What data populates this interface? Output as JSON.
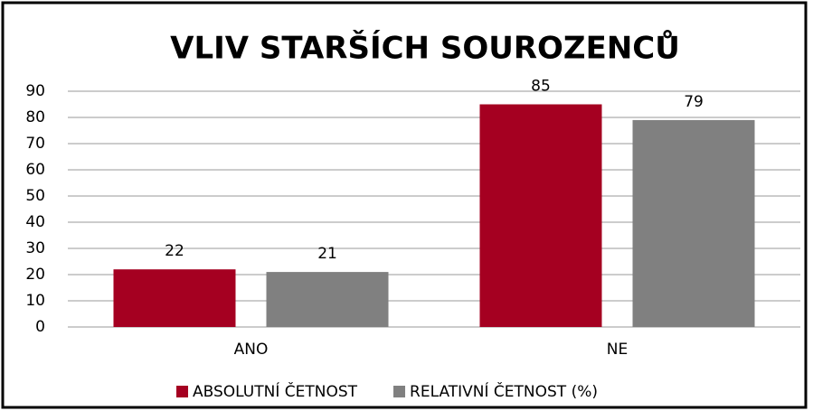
{
  "chart_data": {
    "type": "bar",
    "title": "VLIV STARŠÍCH SOUROZENCŮ",
    "categories": [
      "ANO",
      "NE"
    ],
    "series": [
      {
        "name": "ABSOLUTNÍ ČETNOST",
        "color": "#a50021",
        "values": [
          22,
          85
        ]
      },
      {
        "name": "RELATIVNÍ ČETNOST (%)",
        "color": "#808080",
        "values": [
          21,
          79
        ]
      }
    ],
    "ylim": [
      0,
      90
    ],
    "yticks": [
      0,
      10,
      20,
      30,
      40,
      50,
      60,
      70,
      80,
      90
    ],
    "grid": true,
    "legend": "bottom"
  }
}
